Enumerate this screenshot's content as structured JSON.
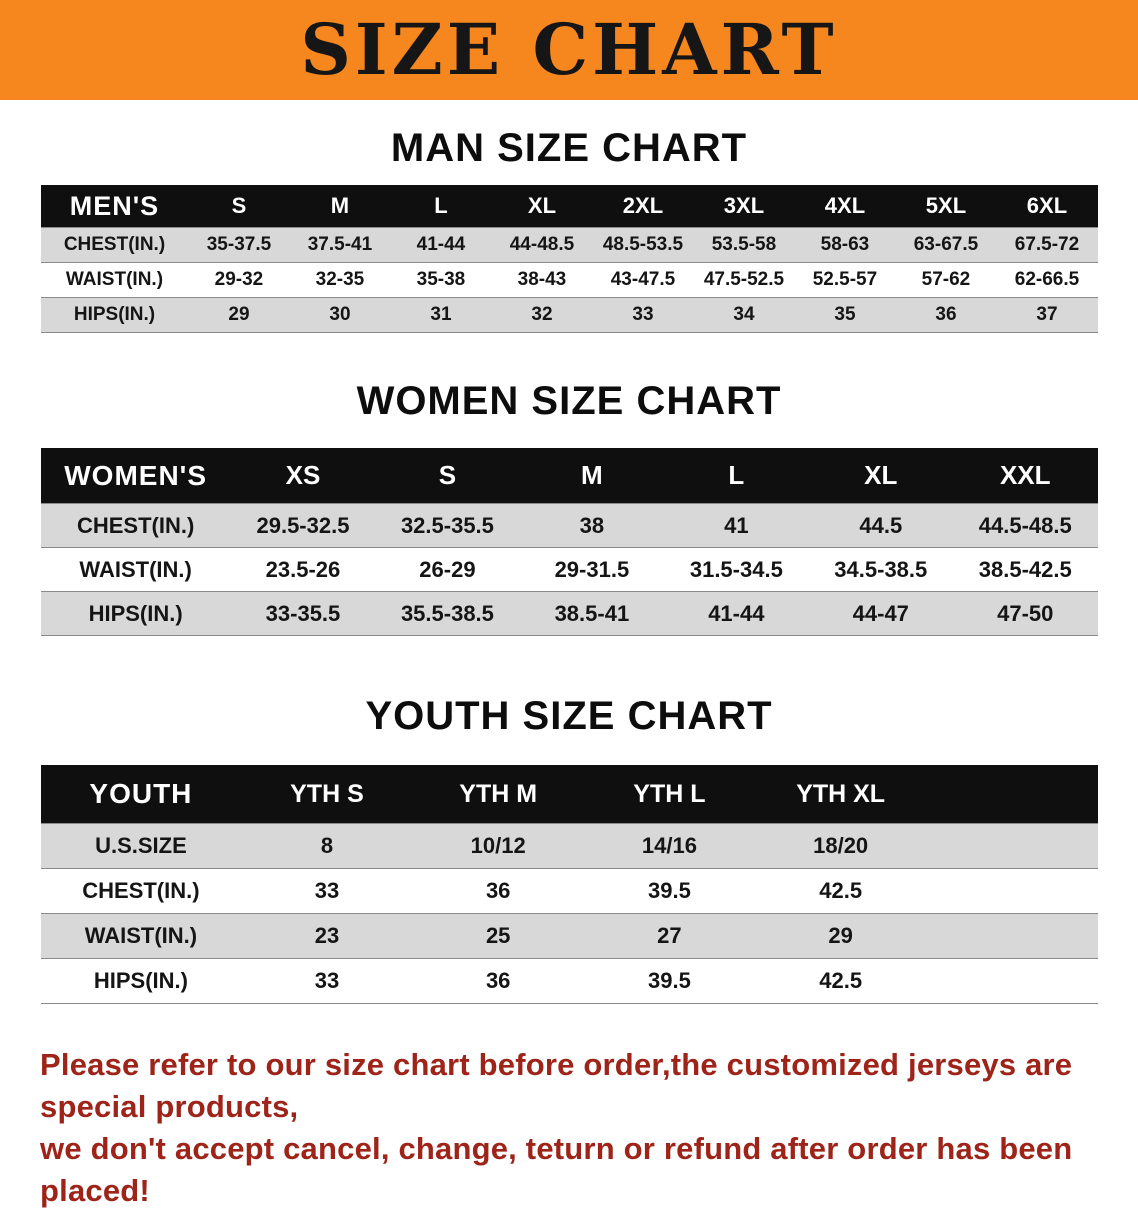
{
  "banner": {
    "title": "SIZE CHART"
  },
  "colors": {
    "banner_bg": "#f6871f",
    "header_bg": "#0f0f0f",
    "row_alt": "#d8d8d8",
    "note_color": "#9e241a"
  },
  "chart_data": [
    {
      "type": "table",
      "title": "MAN SIZE CHART",
      "columns": [
        "MEN'S",
        "S",
        "M",
        "L",
        "XL",
        "2XL",
        "3XL",
        "4XL",
        "5XL",
        "6XL"
      ],
      "rows": [
        [
          "CHEST(IN.)",
          "35-37.5",
          "37.5-41",
          "41-44",
          "44-48.5",
          "48.5-53.5",
          "53.5-58",
          "58-63",
          "63-67.5",
          "67.5-72"
        ],
        [
          "WAIST(IN.)",
          "29-32",
          "32-35",
          "35-38",
          "38-43",
          "43-47.5",
          "47.5-52.5",
          "52.5-57",
          "57-62",
          "62-66.5"
        ],
        [
          "HIPS(IN.)",
          "29",
          "30",
          "31",
          "32",
          "33",
          "34",
          "35",
          "36",
          "37"
        ]
      ]
    },
    {
      "type": "table",
      "title": "WOMEN SIZE CHART",
      "columns": [
        "WOMEN'S",
        "XS",
        "S",
        "M",
        "L",
        "XL",
        "XXL"
      ],
      "rows": [
        [
          "CHEST(IN.)",
          "29.5-32.5",
          "32.5-35.5",
          "38",
          "41",
          "44.5",
          "44.5-48.5"
        ],
        [
          "WAIST(IN.)",
          "23.5-26",
          "26-29",
          "29-31.5",
          "31.5-34.5",
          "34.5-38.5",
          "38.5-42.5"
        ],
        [
          "HIPS(IN.)",
          "33-35.5",
          "35.5-38.5",
          "38.5-41",
          "41-44",
          "44-47",
          "47-50"
        ]
      ]
    },
    {
      "type": "table",
      "title": "YOUTH SIZE CHART",
      "filler_right": true,
      "columns": [
        "YOUTH",
        "YTH S",
        "YTH M",
        "YTH L",
        "YTH XL"
      ],
      "rows": [
        [
          "U.S.SIZE",
          "8",
          "10/12",
          "14/16",
          "18/20"
        ],
        [
          "CHEST(IN.)",
          "33",
          "36",
          "39.5",
          "42.5"
        ],
        [
          "WAIST(IN.)",
          "23",
          "25",
          "27",
          "29"
        ],
        [
          "HIPS(IN.)",
          "33",
          "36",
          "39.5",
          "42.5"
        ]
      ]
    }
  ],
  "footer": {
    "line1": "Please refer to our size chart before order,the customized jerseys are special products,",
    "line2": "we don't accept cancel, change, teturn or refund after order has been placed!"
  }
}
